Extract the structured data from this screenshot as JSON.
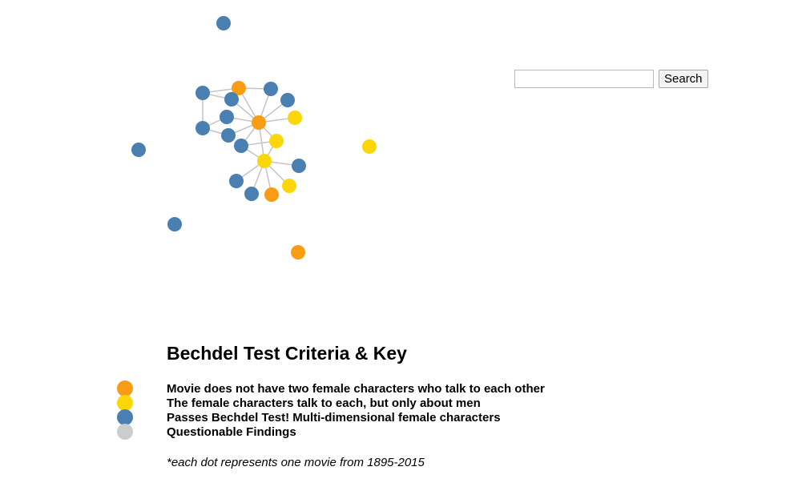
{
  "colors": {
    "fails_no_talk": "#f79c13",
    "talks_about_men": "#fbd70a",
    "passes": "#4a7fb2",
    "questionable": "#cccccc",
    "link": "#c4c4c4"
  },
  "search": {
    "placeholder": "",
    "button_label": "Search"
  },
  "network": {
    "nodes": [
      {
        "category": "passes"
      },
      {
        "category": "passes"
      },
      {
        "category": "fails_no_talk"
      },
      {
        "category": "passes"
      },
      {
        "category": "passes"
      },
      {
        "category": "passes"
      },
      {
        "category": "passes"
      },
      {
        "category": "fails_no_talk"
      },
      {
        "category": "talks_about_men"
      },
      {
        "category": "passes"
      },
      {
        "category": "passes"
      },
      {
        "category": "passes"
      },
      {
        "category": "talks_about_men"
      },
      {
        "category": "passes"
      },
      {
        "category": "talks_about_men"
      },
      {
        "category": "passes"
      },
      {
        "category": "passes"
      },
      {
        "category": "passes"
      },
      {
        "category": "fails_no_talk"
      },
      {
        "category": "talks_about_men"
      },
      {
        "category": "talks_about_men"
      },
      {
        "category": "passes"
      },
      {
        "category": "fails_no_talk"
      }
    ]
  },
  "legend": {
    "title": "Bechdel Test Criteria & Key",
    "items": [
      {
        "color_key": "fails_no_talk",
        "label": "Movie does not have two female characters who talk to each other"
      },
      {
        "color_key": "talks_about_men",
        "label": "The female characters talk to each, but only about men"
      },
      {
        "color_key": "passes",
        "label": "Passes Bechdel Test! Multi-dimensional female characters"
      },
      {
        "color_key": "questionable",
        "label": "Questionable Findings"
      }
    ],
    "footnote": "*each dot represents one movie from 1895-2015"
  }
}
